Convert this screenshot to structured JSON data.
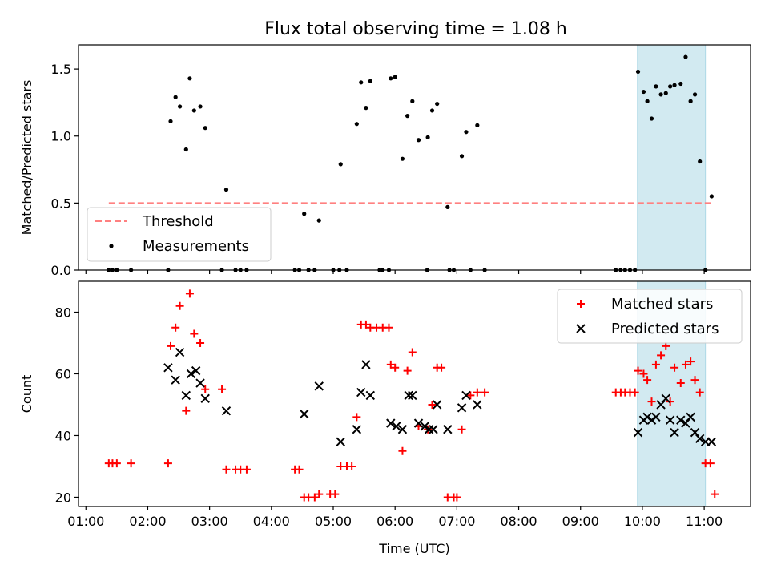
{
  "chart_data": [
    {
      "type": "scatter",
      "title": "Flux total observing time = 1.08 h",
      "xlabel": "",
      "ylabel": "Matched/Predicted stars",
      "xlim": [
        0.88,
        11.75
      ],
      "ylim": [
        0,
        1.68
      ],
      "x_ticks": [
        1,
        2,
        3,
        4,
        5,
        6,
        7,
        8,
        9,
        10,
        11
      ],
      "y_ticks": [
        0.0,
        0.5,
        1.0,
        1.5
      ],
      "y_tick_labels": [
        "0.0",
        "0.5",
        "1.0",
        "1.5"
      ],
      "shaded_span": [
        9.92,
        11.02
      ],
      "threshold": {
        "name": "Threshold",
        "value": 0.5,
        "x_range": [
          1.37,
          11.15
        ],
        "color": "#ff8080"
      },
      "legend": {
        "position": "lower-left",
        "entries": [
          "Threshold",
          "Measurements"
        ]
      },
      "series": [
        {
          "name": "Measurements",
          "color": "#000000",
          "points": [
            [
              1.37,
              0
            ],
            [
              1.43,
              0
            ],
            [
              1.5,
              0
            ],
            [
              1.73,
              0
            ],
            [
              2.33,
              0
            ],
            [
              2.37,
              1.11
            ],
            [
              2.45,
              1.29
            ],
            [
              2.52,
              1.22
            ],
            [
              2.62,
              0.9
            ],
            [
              2.68,
              1.43
            ],
            [
              2.75,
              1.19
            ],
            [
              2.85,
              1.22
            ],
            [
              2.93,
              1.06
            ],
            [
              3.2,
              0
            ],
            [
              3.27,
              0.6
            ],
            [
              3.42,
              0
            ],
            [
              3.5,
              0
            ],
            [
              3.6,
              0
            ],
            [
              4.38,
              0
            ],
            [
              4.45,
              0
            ],
            [
              4.53,
              0.42
            ],
            [
              4.6,
              0
            ],
            [
              4.7,
              0
            ],
            [
              4.77,
              0.37
            ],
            [
              5.0,
              0
            ],
            [
              5.1,
              0
            ],
            [
              5.12,
              0.79
            ],
            [
              5.22,
              0
            ],
            [
              5.38,
              1.09
            ],
            [
              5.45,
              1.4
            ],
            [
              5.53,
              1.21
            ],
            [
              5.6,
              1.41
            ],
            [
              5.75,
              0
            ],
            [
              5.8,
              0
            ],
            [
              5.9,
              0
            ],
            [
              5.93,
              1.43
            ],
            [
              6.0,
              1.44
            ],
            [
              6.12,
              0.83
            ],
            [
              6.2,
              1.15
            ],
            [
              6.28,
              1.26
            ],
            [
              6.38,
              0.97
            ],
            [
              6.52,
              0
            ],
            [
              6.53,
              0.99
            ],
            [
              6.6,
              1.19
            ],
            [
              6.68,
              1.24
            ],
            [
              6.85,
              0.47
            ],
            [
              6.88,
              0
            ],
            [
              6.95,
              0
            ],
            [
              7.08,
              0.85
            ],
            [
              7.15,
              1.03
            ],
            [
              7.22,
              0
            ],
            [
              7.33,
              1.08
            ],
            [
              7.45,
              0
            ]
          ]
        },
        {
          "name": "Measurements (shaded window)",
          "color": "#000000",
          "points": [
            [
              9.57,
              0
            ],
            [
              9.65,
              0
            ],
            [
              9.72,
              0
            ],
            [
              9.8,
              0
            ],
            [
              9.88,
              0
            ],
            [
              9.93,
              1.48
            ],
            [
              10.02,
              1.33
            ],
            [
              10.08,
              1.26
            ],
            [
              10.15,
              1.13
            ],
            [
              10.22,
              1.37
            ],
            [
              10.3,
              1.31
            ],
            [
              10.38,
              1.32
            ],
            [
              10.45,
              1.37
            ],
            [
              10.52,
              1.38
            ],
            [
              10.62,
              1.39
            ],
            [
              10.7,
              1.59
            ],
            [
              10.78,
              1.26
            ],
            [
              10.85,
              1.31
            ],
            [
              10.93,
              0.81
            ],
            [
              11.02,
              0
            ],
            [
              11.12,
              0.55
            ]
          ]
        }
      ]
    },
    {
      "type": "scatter",
      "title": "",
      "xlabel": "Time (UTC)",
      "ylabel": "Count",
      "xlim": [
        0.88,
        11.75
      ],
      "ylim": [
        17,
        90
      ],
      "x_ticks": [
        1,
        2,
        3,
        4,
        5,
        6,
        7,
        8,
        9,
        10,
        11
      ],
      "x_tick_labels": [
        "01:00",
        "02:00",
        "03:00",
        "04:00",
        "05:00",
        "06:00",
        "07:00",
        "08:00",
        "09:00",
        "10:00",
        "11:00"
      ],
      "y_ticks": [
        20,
        40,
        60,
        80
      ],
      "y_tick_labels": [
        "20",
        "40",
        "60",
        "80"
      ],
      "shaded_span": [
        9.92,
        11.02
      ],
      "legend": {
        "position": "upper-right",
        "entries": [
          "Matched stars",
          "Predicted stars"
        ]
      },
      "series": [
        {
          "name": "Matched stars",
          "marker": "plus",
          "color": "#ff0000",
          "points": [
            [
              1.37,
              31
            ],
            [
              1.43,
              31
            ],
            [
              1.5,
              31
            ],
            [
              1.73,
              31
            ],
            [
              2.33,
              31
            ],
            [
              2.37,
              69
            ],
            [
              2.45,
              75
            ],
            [
              2.52,
              82
            ],
            [
              2.62,
              48
            ],
            [
              2.68,
              86
            ],
            [
              2.75,
              73
            ],
            [
              2.85,
              70
            ],
            [
              2.93,
              55
            ],
            [
              3.2,
              55
            ],
            [
              3.27,
              29
            ],
            [
              3.42,
              29
            ],
            [
              3.5,
              29
            ],
            [
              3.6,
              29
            ],
            [
              4.38,
              29
            ],
            [
              4.45,
              29
            ],
            [
              4.53,
              20
            ],
            [
              4.6,
              20
            ],
            [
              4.7,
              20
            ],
            [
              4.77,
              21
            ],
            [
              4.95,
              21
            ],
            [
              5.03,
              21
            ],
            [
              5.12,
              30
            ],
            [
              5.22,
              30
            ],
            [
              5.3,
              30
            ],
            [
              5.38,
              46
            ],
            [
              5.45,
              76
            ],
            [
              5.53,
              76
            ],
            [
              5.6,
              75
            ],
            [
              5.7,
              75
            ],
            [
              5.8,
              75
            ],
            [
              5.9,
              75
            ],
            [
              5.93,
              63
            ],
            [
              6.0,
              62
            ],
            [
              6.12,
              35
            ],
            [
              6.2,
              61
            ],
            [
              6.28,
              67
            ],
            [
              6.38,
              43
            ],
            [
              6.53,
              42
            ],
            [
              6.6,
              50
            ],
            [
              6.68,
              62
            ],
            [
              6.75,
              62
            ],
            [
              6.85,
              20
            ],
            [
              6.95,
              20
            ],
            [
              7.0,
              20
            ],
            [
              7.08,
              42
            ],
            [
              7.22,
              53
            ],
            [
              7.33,
              54
            ],
            [
              7.45,
              54
            ],
            [
              9.57,
              54
            ],
            [
              9.65,
              54
            ],
            [
              9.72,
              54
            ],
            [
              9.8,
              54
            ],
            [
              9.88,
              54
            ],
            [
              9.93,
              61
            ],
            [
              10.02,
              60
            ],
            [
              10.08,
              58
            ],
            [
              10.15,
              51
            ],
            [
              10.22,
              63
            ],
            [
              10.3,
              66
            ],
            [
              10.38,
              69
            ],
            [
              10.45,
              51
            ],
            [
              10.52,
              62
            ],
            [
              10.62,
              57
            ],
            [
              10.7,
              63
            ],
            [
              10.78,
              64
            ],
            [
              10.85,
              58
            ],
            [
              10.93,
              54
            ],
            [
              11.02,
              31
            ],
            [
              11.1,
              31
            ],
            [
              11.17,
              21
            ]
          ]
        },
        {
          "name": "Predicted stars",
          "marker": "x",
          "color": "#000000",
          "points": [
            [
              2.33,
              62
            ],
            [
              2.45,
              58
            ],
            [
              2.52,
              67
            ],
            [
              2.62,
              53
            ],
            [
              2.7,
              60
            ],
            [
              2.78,
              61
            ],
            [
              2.85,
              57
            ],
            [
              2.93,
              52
            ],
            [
              3.27,
              48
            ],
            [
              4.53,
              47
            ],
            [
              4.77,
              56
            ],
            [
              5.12,
              38
            ],
            [
              5.38,
              42
            ],
            [
              5.45,
              54
            ],
            [
              5.53,
              63
            ],
            [
              5.6,
              53
            ],
            [
              5.93,
              44
            ],
            [
              6.02,
              43
            ],
            [
              6.12,
              42
            ],
            [
              6.22,
              53
            ],
            [
              6.28,
              53
            ],
            [
              6.38,
              44
            ],
            [
              6.48,
              43
            ],
            [
              6.55,
              42
            ],
            [
              6.62,
              42
            ],
            [
              6.68,
              50
            ],
            [
              6.85,
              42
            ],
            [
              7.08,
              49
            ],
            [
              7.15,
              53
            ],
            [
              7.33,
              50
            ],
            [
              9.93,
              41
            ],
            [
              10.02,
              45
            ],
            [
              10.08,
              46
            ],
            [
              10.15,
              45
            ],
            [
              10.22,
              46
            ],
            [
              10.3,
              50
            ],
            [
              10.38,
              52
            ],
            [
              10.45,
              45
            ],
            [
              10.52,
              41
            ],
            [
              10.62,
              45
            ],
            [
              10.7,
              44
            ],
            [
              10.78,
              46
            ],
            [
              10.85,
              41
            ],
            [
              10.93,
              39
            ],
            [
              11.02,
              38
            ],
            [
              11.12,
              38
            ]
          ]
        }
      ]
    }
  ]
}
